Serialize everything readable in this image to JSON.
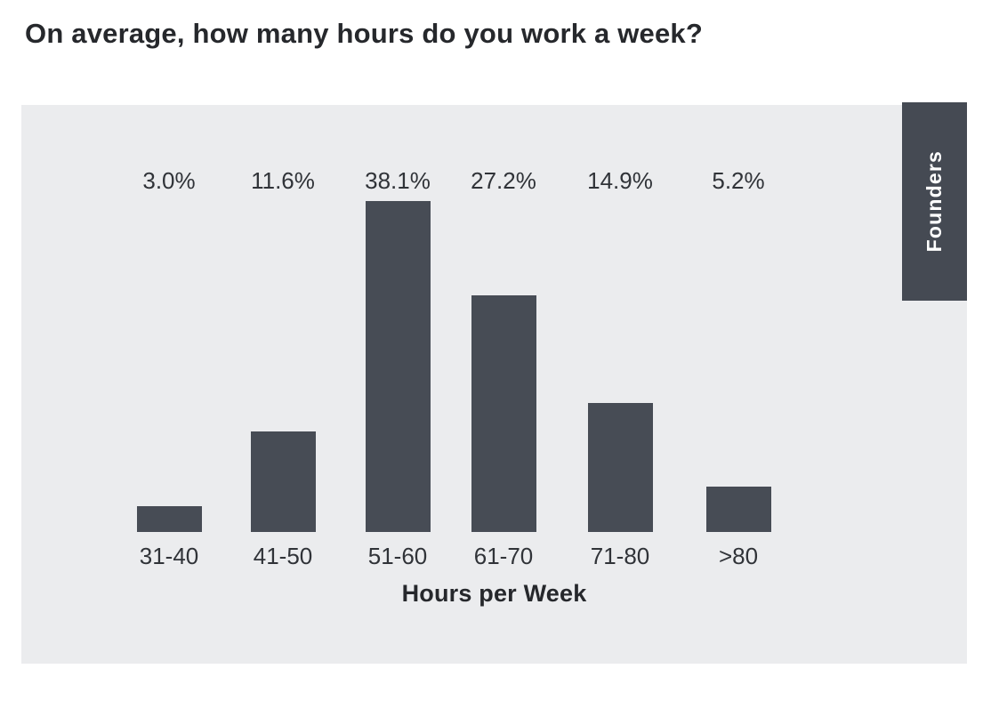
{
  "title": "On average, how many hours do you work a week?",
  "side_tab": {
    "label": "Founders"
  },
  "colors": {
    "page_bg": "#FFFFFF",
    "panel_bg": "#EBECEE",
    "bar": "#474C55",
    "tab_bg": "#454A53",
    "tab_text": "#FFFFFF",
    "title_text": "#26282C",
    "label_text": "#303338"
  },
  "chart_data": {
    "type": "bar",
    "title": "On average, how many hours do you work a week?",
    "categories": [
      "31-40",
      "41-50",
      "51-60",
      "61-70",
      "71-80",
      ">80"
    ],
    "values": [
      3.0,
      11.6,
      38.1,
      27.2,
      14.9,
      5.2
    ],
    "value_labels": [
      "3.0%",
      "11.6%",
      "38.1%",
      "27.2%",
      "14.9%",
      "5.2%"
    ],
    "series_name": "Founders",
    "xlabel": "Hours per Week",
    "ylabel": "",
    "ylim": [
      0,
      40
    ],
    "grid": false,
    "axes_visible": false,
    "legend_position": "right-tab",
    "value_label_position": "fixed-top-row"
  }
}
